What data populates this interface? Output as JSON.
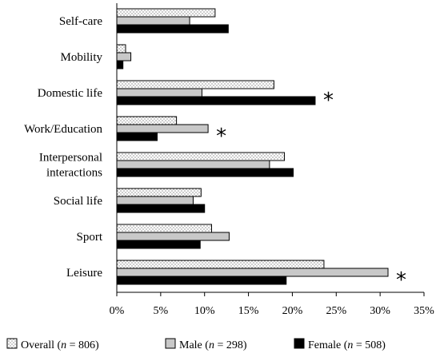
{
  "chart_data": {
    "type": "bar",
    "orientation": "horizontal",
    "categories": [
      [
        "Self-care"
      ],
      [
        "Mobility"
      ],
      [
        "Domestic life"
      ],
      [
        "Work/Education"
      ],
      [
        "Interpersonal",
        "interactions"
      ],
      [
        "Social life"
      ],
      [
        "Sport"
      ],
      [
        "Leisure"
      ]
    ],
    "series": [
      {
        "legend": [
          "Overall (",
          "n",
          " = 806)"
        ],
        "color": "#ffffff",
        "pattern": "dots",
        "values": [
          11.2,
          1.0,
          17.9,
          6.8,
          19.1,
          9.6,
          10.8,
          23.6
        ]
      },
      {
        "legend": [
          "Male (",
          "n",
          " = 298)"
        ],
        "color": "#c8c8c8",
        "pattern": "solid",
        "values": [
          8.3,
          1.6,
          9.7,
          10.4,
          17.4,
          8.7,
          12.8,
          30.9
        ]
      },
      {
        "legend": [
          "Female (",
          "n",
          " = 508)"
        ],
        "color": "#000000",
        "pattern": "solid",
        "values": [
          12.7,
          0.7,
          22.6,
          4.6,
          20.1,
          10.0,
          9.5,
          19.3
        ]
      }
    ],
    "significance": [
      {
        "category_index": 2,
        "symbol": "*"
      },
      {
        "category_index": 3,
        "symbol": "*"
      },
      {
        "category_index": 7,
        "symbol": "*"
      }
    ],
    "x_ticks": [
      "0%",
      "5%",
      "10%",
      "15%",
      "20%",
      "25%",
      "30%",
      "35%"
    ],
    "xlim": [
      0,
      35
    ],
    "grid": false,
    "legend_position": "bottom"
  }
}
